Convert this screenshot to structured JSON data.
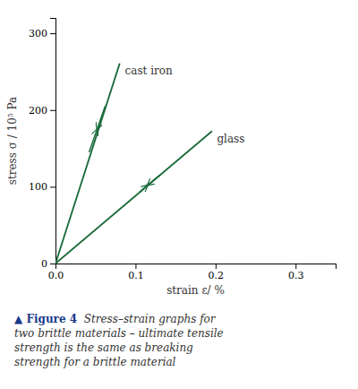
{
  "chart_data": {
    "type": "line",
    "xlabel": "strain ε/ %",
    "ylabel": "stress σ / 10⁵ Pa",
    "xlim": [
      0,
      0.35
    ],
    "ylim": [
      0,
      320
    ],
    "xticks": [
      {
        "value": 0,
        "label": "0.0"
      },
      0.1,
      0.2,
      0.3
    ],
    "yticks": [
      0,
      100,
      200,
      300
    ],
    "series": [
      {
        "name": "cast iron",
        "color": "#1a6b3a",
        "x": [
          0,
          0.08
        ],
        "values": [
          0,
          260
        ],
        "arrows": [
          {
            "tail": [
              0.042,
              145
            ],
            "head": [
              0.052,
              175
            ]
          },
          {
            "tail": [
              0.062,
              205
            ],
            "head": [
              0.052,
              175
            ]
          }
        ]
      },
      {
        "name": "glass",
        "color": "#1a6b3a",
        "x": [
          0,
          0.195
        ],
        "values": [
          0,
          172
        ],
        "arrows": [
          {
            "tail": [
              0.13,
              115
            ],
            "head": [
              0.115,
              102
            ]
          },
          {
            "tail": [
              0.105,
              93
            ],
            "head": [
              0.115,
              102
            ]
          }
        ]
      }
    ],
    "caption_bold": "▲ Figure 4",
    "caption": "  Stress–strain graphs for\ntwo brittle materials – ultimate tensile\nstrength is the same as breaking\nstrength for a brittle material"
  }
}
